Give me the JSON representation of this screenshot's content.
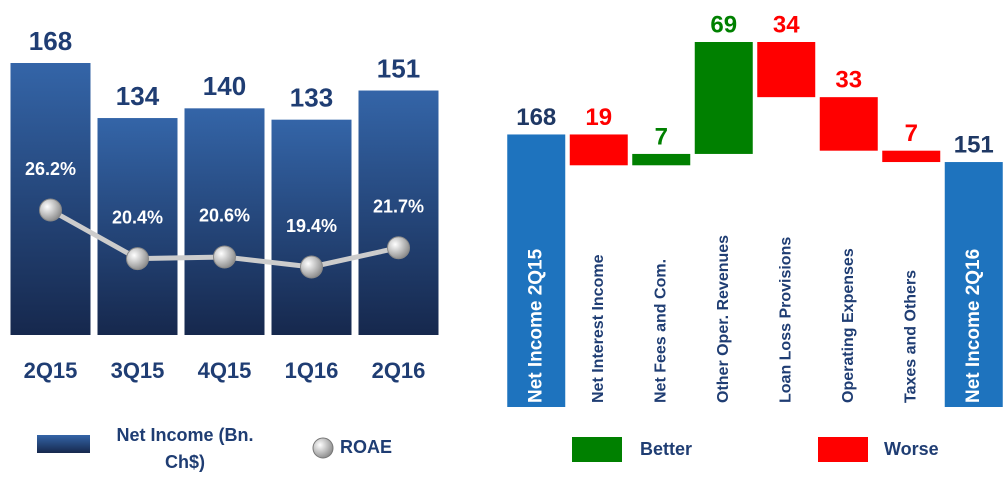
{
  "chart_data": [
    {
      "type": "bar",
      "categories": [
        "2Q15",
        "3Q15",
        "4Q15",
        "1Q16",
        "2Q16"
      ],
      "series": [
        {
          "name": "Net Income (Bn. Ch$)",
          "type": "bar",
          "color": "#1f3d73",
          "values": [
            168,
            134,
            140,
            133,
            151
          ]
        },
        {
          "name": "ROAE",
          "type": "line",
          "color": "#cccccc",
          "values": [
            26.2,
            20.4,
            20.6,
            19.4,
            21.7
          ],
          "value_labels": [
            "26.2%",
            "20.4%",
            "20.6%",
            "19.4%",
            "21.7%"
          ]
        }
      ]
    },
    {
      "type": "waterfall",
      "categories": [
        "Net Income 2Q15",
        "Net Interest Income",
        "Net Fees and Com.",
        "Other Oper. Revenues",
        "Loan Loss Provisions",
        "Operating Expenses",
        "Taxes and Others",
        "Net Income 2Q16"
      ],
      "values": [
        168,
        -19,
        7,
        69,
        -34,
        -33,
        -7,
        151
      ],
      "value_labels": [
        "168",
        "19",
        "7",
        "69",
        "34",
        "33",
        "7",
        "151"
      ],
      "measure": [
        "absolute",
        "relative",
        "relative",
        "relative",
        "relative",
        "relative",
        "relative",
        "total"
      ],
      "increasing": {
        "name": "Better",
        "color": "#008000"
      },
      "decreasing": {
        "name": "Worse",
        "color": "#ff0000"
      },
      "totals": {
        "color": "#1e73be"
      }
    }
  ]
}
